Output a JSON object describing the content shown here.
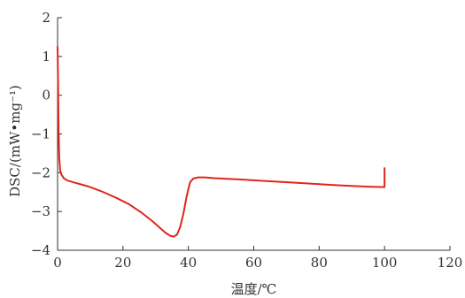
{
  "chart_data": {
    "type": "line",
    "title": "",
    "xlabel": "温度/℃",
    "ylabel": "DSC/(mW•mg⁻¹)",
    "xlim": [
      0,
      120
    ],
    "ylim": [
      -4,
      2
    ],
    "x_ticks": [
      0,
      20,
      40,
      60,
      80,
      100,
      120
    ],
    "y_ticks": [
      -4,
      -3,
      -2,
      -1,
      0,
      1,
      2
    ],
    "grid": false,
    "legend": "none",
    "series": [
      {
        "color": "#e0261c",
        "x": [
          0,
          0.15,
          0.3,
          0.5,
          0.8,
          1.2,
          2,
          3,
          5,
          8,
          10,
          14,
          18,
          22,
          26,
          29,
          31,
          33,
          34.5,
          35.5,
          36.5,
          37.5,
          38.5,
          39.5,
          40.5,
          41.5,
          43,
          45,
          48,
          55,
          65,
          75,
          85,
          95,
          99.5,
          100,
          100,
          100
        ],
        "y": [
          1.25,
          0.4,
          -0.8,
          -1.6,
          -1.95,
          -2.05,
          -2.15,
          -2.2,
          -2.25,
          -2.32,
          -2.37,
          -2.5,
          -2.65,
          -2.82,
          -3.05,
          -3.25,
          -3.4,
          -3.55,
          -3.63,
          -3.65,
          -3.6,
          -3.4,
          -3.05,
          -2.6,
          -2.25,
          -2.15,
          -2.12,
          -2.12,
          -2.14,
          -2.17,
          -2.22,
          -2.27,
          -2.32,
          -2.36,
          -2.37,
          -2.37,
          -2.1,
          -1.88
        ]
      }
    ]
  }
}
